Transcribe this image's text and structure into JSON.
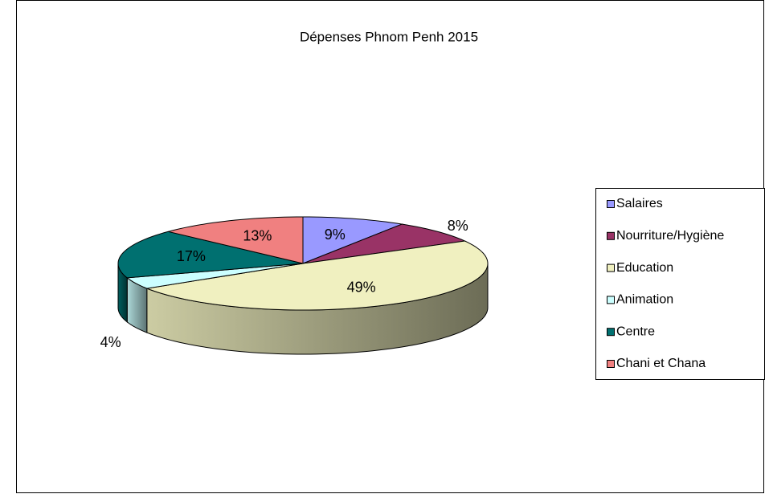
{
  "chart_data": {
    "type": "pie",
    "title": "Dépenses Phnom Penh 2015",
    "categories": [
      "Salaires",
      "Nourriture/Hygiène",
      "Education",
      "Animation",
      "Centre",
      "Chani et Chana"
    ],
    "values": [
      9,
      8,
      49,
      4,
      17,
      13
    ],
    "value_labels": [
      "9%",
      "8%",
      "49%",
      "4%",
      "17%",
      "13%"
    ],
    "colors": [
      "#9999ff",
      "#993366",
      "#f0f0c0",
      "#ccffff",
      "#007070",
      "#f08080"
    ],
    "legend": "right"
  }
}
